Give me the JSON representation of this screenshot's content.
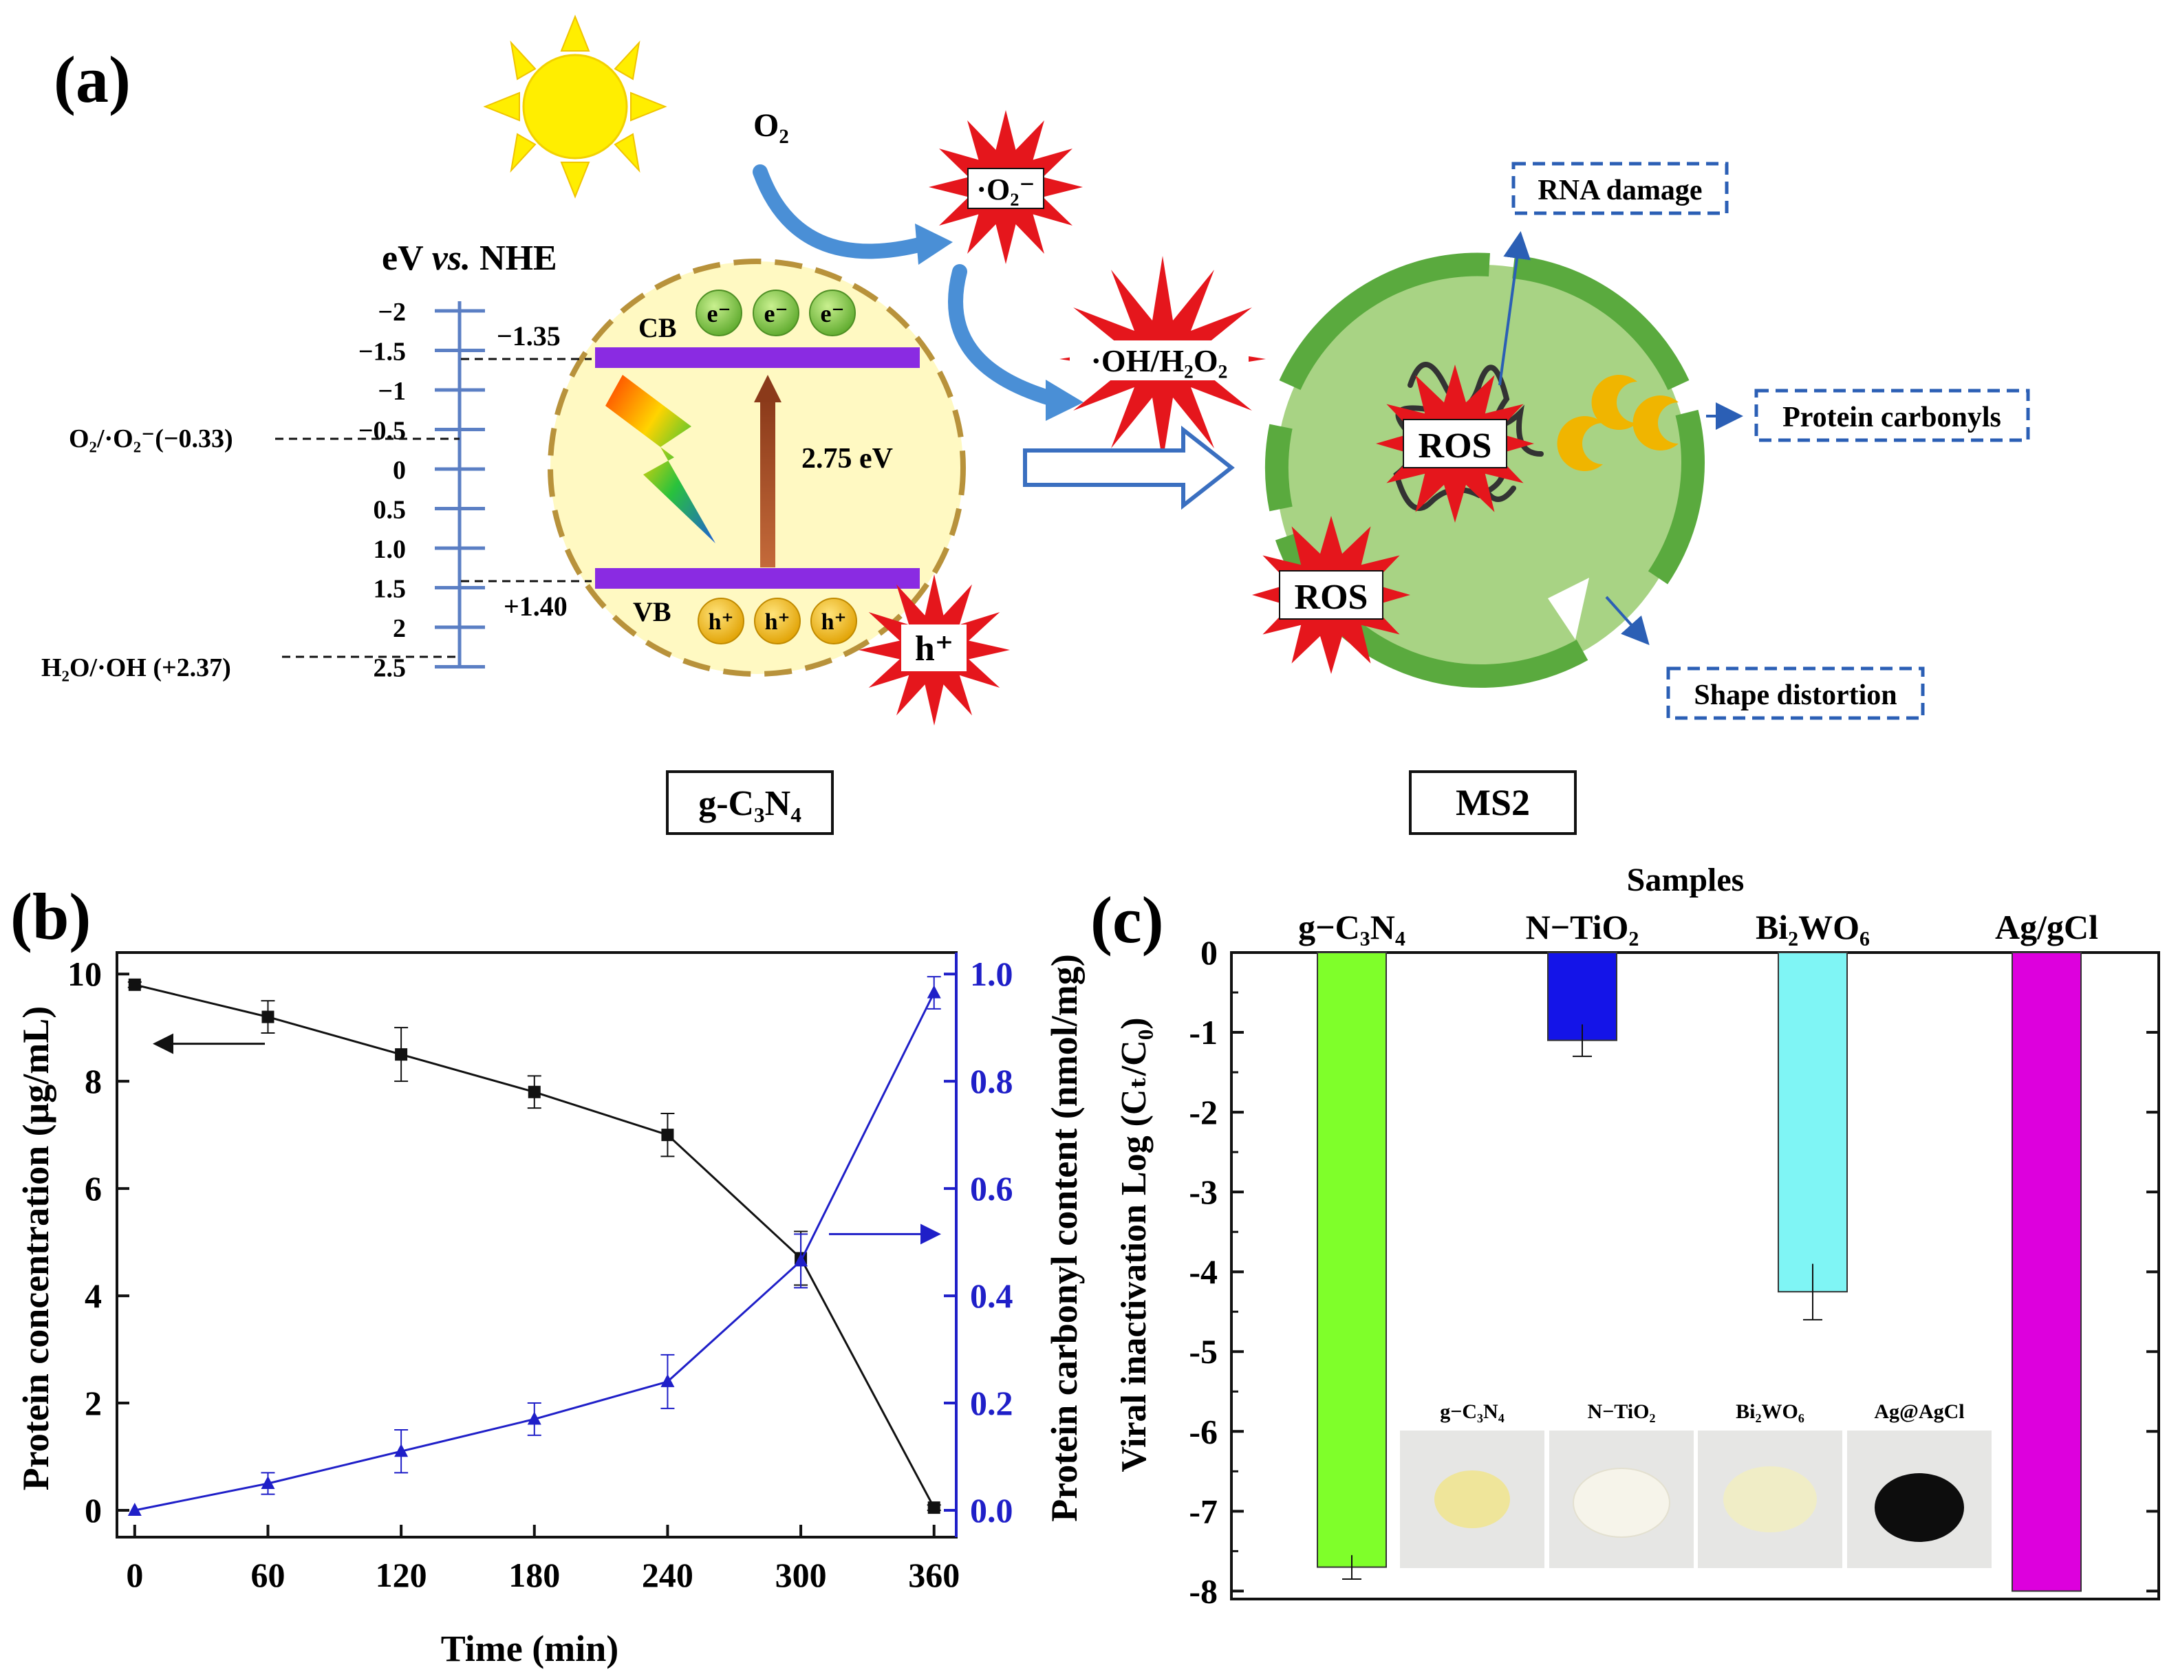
{
  "panel_a": {
    "label": "(a)",
    "axis_title": "eV vs. NHE",
    "scale_ticks": [
      "−2",
      "−1.5",
      "−1",
      "−0.5",
      "0",
      "0.5",
      "1.0",
      "1.5",
      "2",
      "2.5"
    ],
    "o2_couple": "O₂/·O₂⁻(−0.33)",
    "h2o_couple": "H₂O/·OH (+2.37)",
    "cb_potential": "−1.35",
    "vb_potential": "+1.40",
    "cb_label": "CB",
    "vb_label": "VB",
    "electron": "e⁻",
    "hole": "h⁺",
    "band_gap": "2.75 eV",
    "o2": "O₂",
    "superoxide": "·O₂⁻",
    "hydroxyl": "·OH/H₂O₂",
    "hole_star": "h⁺",
    "ros": "ROS",
    "rna_damage": "RNA damage",
    "protein_carbonyls": "Protein carbonyls",
    "shape_distortion": "Shape distortion",
    "catalyst_caption": "g-C₃N₄",
    "virus_caption": "MS2",
    "colors": {
      "band": "#8a2be2",
      "ros": "#e5161c",
      "virus": "#a8d384",
      "virus_rim": "#5aaa3e",
      "sun": "#ffee00",
      "arrow": "#4a8fd6"
    }
  },
  "panel_b": {
    "label": "(b)",
    "chart_data": {
      "type": "line",
      "title": "",
      "xlabel": "Time (min)",
      "ylabel_left": "Protein concentration (μg/mL)",
      "ylabel_right": "Protein carbonyl content (nmol/mg)",
      "x": [
        0,
        60,
        120,
        180,
        240,
        300,
        360
      ],
      "x_ticks": [
        "0",
        "60",
        "120",
        "180",
        "240",
        "300",
        "360"
      ],
      "xlim": [
        -8,
        370
      ],
      "y_left_ticks": [
        "0",
        "2",
        "4",
        "6",
        "8",
        "10"
      ],
      "y_right_ticks": [
        "0.0",
        "0.2",
        "0.4",
        "0.6",
        "0.8",
        "1.0"
      ],
      "ylim_left": [
        -0.5,
        10.4
      ],
      "ylim_right": [
        -0.05,
        1.04
      ],
      "series": [
        {
          "name": "Protein concentration",
          "axis": "left",
          "marker": "square",
          "color": "#111111",
          "values": [
            9.8,
            9.2,
            8.5,
            7.8,
            7.0,
            4.7,
            0.05
          ],
          "errors": [
            0.05,
            0.3,
            0.5,
            0.3,
            0.4,
            0.5,
            0.05
          ]
        },
        {
          "name": "Protein carbonyl content",
          "axis": "right",
          "marker": "triangle",
          "color": "#1f1fc8",
          "values": [
            0.0,
            0.05,
            0.11,
            0.17,
            0.24,
            0.465,
            0.965
          ],
          "errors": [
            0.0,
            0.02,
            0.04,
            0.03,
            0.05,
            0.05,
            0.03
          ]
        }
      ]
    }
  },
  "panel_c": {
    "label": "(c)",
    "chart_data": {
      "type": "bar",
      "title": "Samples",
      "ylabel": "Viral inactivation Log (Cₜ/C₀)",
      "categories": [
        "g−C₃N₄",
        "N−TiO₂",
        "Bi₂WO₆",
        "Ag/gCl"
      ],
      "values": [
        -7.7,
        -1.1,
        -4.25,
        -8.0
      ],
      "errors": [
        0.15,
        0.2,
        0.35,
        0
      ],
      "colors": [
        "#7fff2a",
        "#1414e8",
        "#7ff5f5",
        "#dd00dd"
      ],
      "ylim": [
        -8.1,
        0
      ],
      "y_ticks": [
        "0",
        "-1",
        "-2",
        "-3",
        "-4",
        "-5",
        "-6",
        "-7",
        "-8"
      ],
      "inset_labels": [
        "g−C₃N₄",
        "N−TiO₂",
        "Bi₂WO₆",
        "Ag@AgCl"
      ]
    }
  }
}
